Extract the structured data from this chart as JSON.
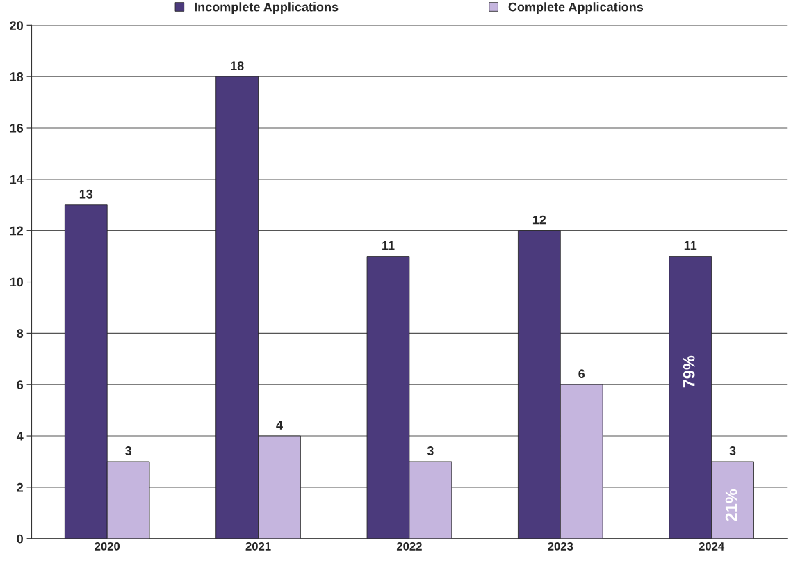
{
  "chart_data": {
    "type": "bar",
    "categories": [
      "2020",
      "2021",
      "2022",
      "2023",
      "2024"
    ],
    "series": [
      {
        "name": "Incomplete Applications",
        "color": "#4b3a7c",
        "values": [
          13,
          18,
          11,
          12,
          11
        ]
      },
      {
        "name": "Complete Applications",
        "color": "#c5b5de",
        "values": [
          3,
          4,
          3,
          6,
          3
        ]
      }
    ],
    "ylim": [
      0,
      20
    ],
    "yticks": [
      0,
      2,
      4,
      6,
      8,
      10,
      12,
      14,
      16,
      18,
      20
    ],
    "grid": "y",
    "legend": "top",
    "data_labels": true,
    "annotations": [
      {
        "text": "79%",
        "x": "2024",
        "y": 6.5
      },
      {
        "text": "21%",
        "x": "2024",
        "y": 1.3
      }
    ]
  }
}
